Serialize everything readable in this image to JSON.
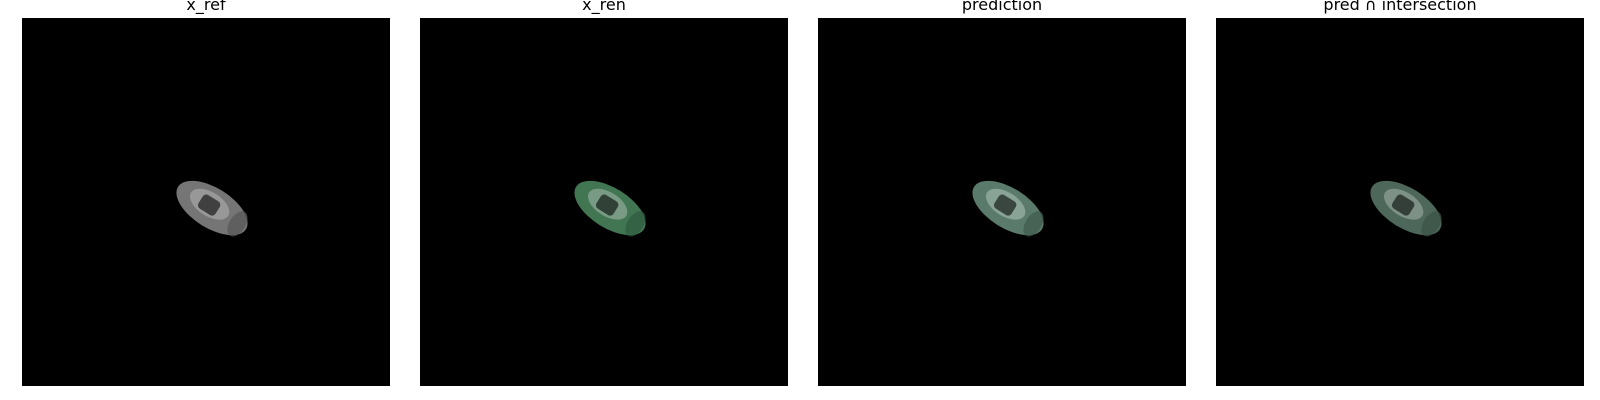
{
  "panels": [
    {
      "title": "x_ref",
      "car_tint": "#8a8a8a",
      "highlight": "#b5b5b5"
    },
    {
      "title": "x_ren",
      "car_tint": "#4e8a60",
      "highlight": "#a8b8ad"
    },
    {
      "title": "prediction",
      "car_tint": "#6a8f7e",
      "highlight": "#b0c4ba"
    },
    {
      "title": "pred ∩ intersection",
      "car_tint": "#5a7a6a",
      "highlight": "#a6b3ab"
    }
  ]
}
